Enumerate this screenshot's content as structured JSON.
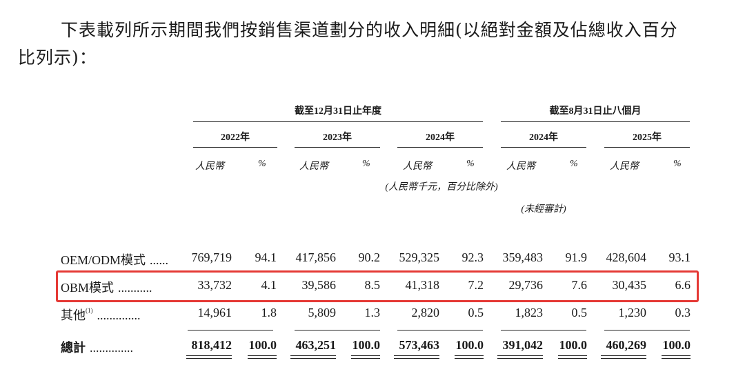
{
  "intro": {
    "line1": "下表載列所示期間我們按銷售渠道劃分的收入明細(以絕對金額及佔總收入百分",
    "line2": "比列示)："
  },
  "table": {
    "group_headers": [
      "截至12月31日止年度",
      "截至8月31日止八個月"
    ],
    "years": [
      "2022年",
      "2023年",
      "2024年",
      "2024年",
      "2025年"
    ],
    "unit_rmb": "人民幣",
    "unit_pct": "%",
    "unit_note": "(人民幣千元，百分比除外)",
    "unaudited_note": "(未經審計)",
    "rows": [
      {
        "label": "OEM/ODM模式",
        "dots": "......",
        "sup": "",
        "values": [
          "769,719",
          "94.1",
          "417,856",
          "90.2",
          "529,325",
          "92.3",
          "359,483",
          "91.9",
          "428,604",
          "93.1"
        ]
      },
      {
        "label": "OBM模式",
        "dots": "...........",
        "sup": "",
        "values": [
          "33,732",
          "4.1",
          "39,586",
          "8.5",
          "41,318",
          "7.2",
          "29,736",
          "7.6",
          "30,435",
          "6.6"
        ]
      },
      {
        "label": "其他",
        "dots": "..............",
        "sup": "(1)",
        "values": [
          "14,961",
          "1.8",
          "5,809",
          "1.3",
          "2,820",
          "0.5",
          "1,823",
          "0.5",
          "1,230",
          "0.3"
        ]
      },
      {
        "label": "總計",
        "dots": "..............",
        "sup": "",
        "values": [
          "818,412",
          "100.0",
          "463,251",
          "100.0",
          "573,463",
          "100.0",
          "391,042",
          "100.0",
          "460,269",
          "100.0"
        ]
      }
    ]
  },
  "highlight_color": "#e53935"
}
